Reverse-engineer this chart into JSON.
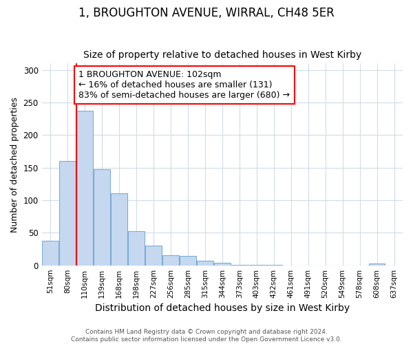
{
  "title1": "1, BROUGHTON AVENUE, WIRRAL, CH48 5ER",
  "title2": "Size of property relative to detached houses in West Kirby",
  "xlabel": "Distribution of detached houses by size in West Kirby",
  "ylabel": "Number of detached properties",
  "categories": [
    "51sqm",
    "80sqm",
    "110sqm",
    "139sqm",
    "168sqm",
    "198sqm",
    "227sqm",
    "256sqm",
    "285sqm",
    "315sqm",
    "344sqm",
    "373sqm",
    "403sqm",
    "432sqm",
    "461sqm",
    "491sqm",
    "520sqm",
    "549sqm",
    "578sqm",
    "608sqm",
    "637sqm"
  ],
  "bar_heights": [
    38,
    160,
    237,
    148,
    111,
    52,
    30,
    16,
    14,
    7,
    4,
    1,
    1,
    1,
    0,
    0,
    0,
    0,
    0,
    3,
    0
  ],
  "bar_color": "#c5d8f0",
  "bar_edge_color": "#7aadd4",
  "red_line_x": 1.5,
  "annotation_text": "1 BROUGHTON AVENUE: 102sqm\n← 16% of detached houses are smaller (131)\n83% of semi-detached houses are larger (680) →",
  "annotation_box_color": "white",
  "annotation_box_edge": "red",
  "ylim": [
    0,
    310
  ],
  "yticks": [
    0,
    50,
    100,
    150,
    200,
    250,
    300
  ],
  "footnote": "Contains HM Land Registry data © Crown copyright and database right 2024.\nContains public sector information licensed under the Open Government Licence v3.0.",
  "bg_color": "#ffffff",
  "plot_bg_color": "#ffffff",
  "grid_color": "#d0dce8",
  "title1_fontsize": 12,
  "title2_fontsize": 10,
  "xlabel_fontsize": 10,
  "ylabel_fontsize": 9,
  "annot_fontsize": 9
}
